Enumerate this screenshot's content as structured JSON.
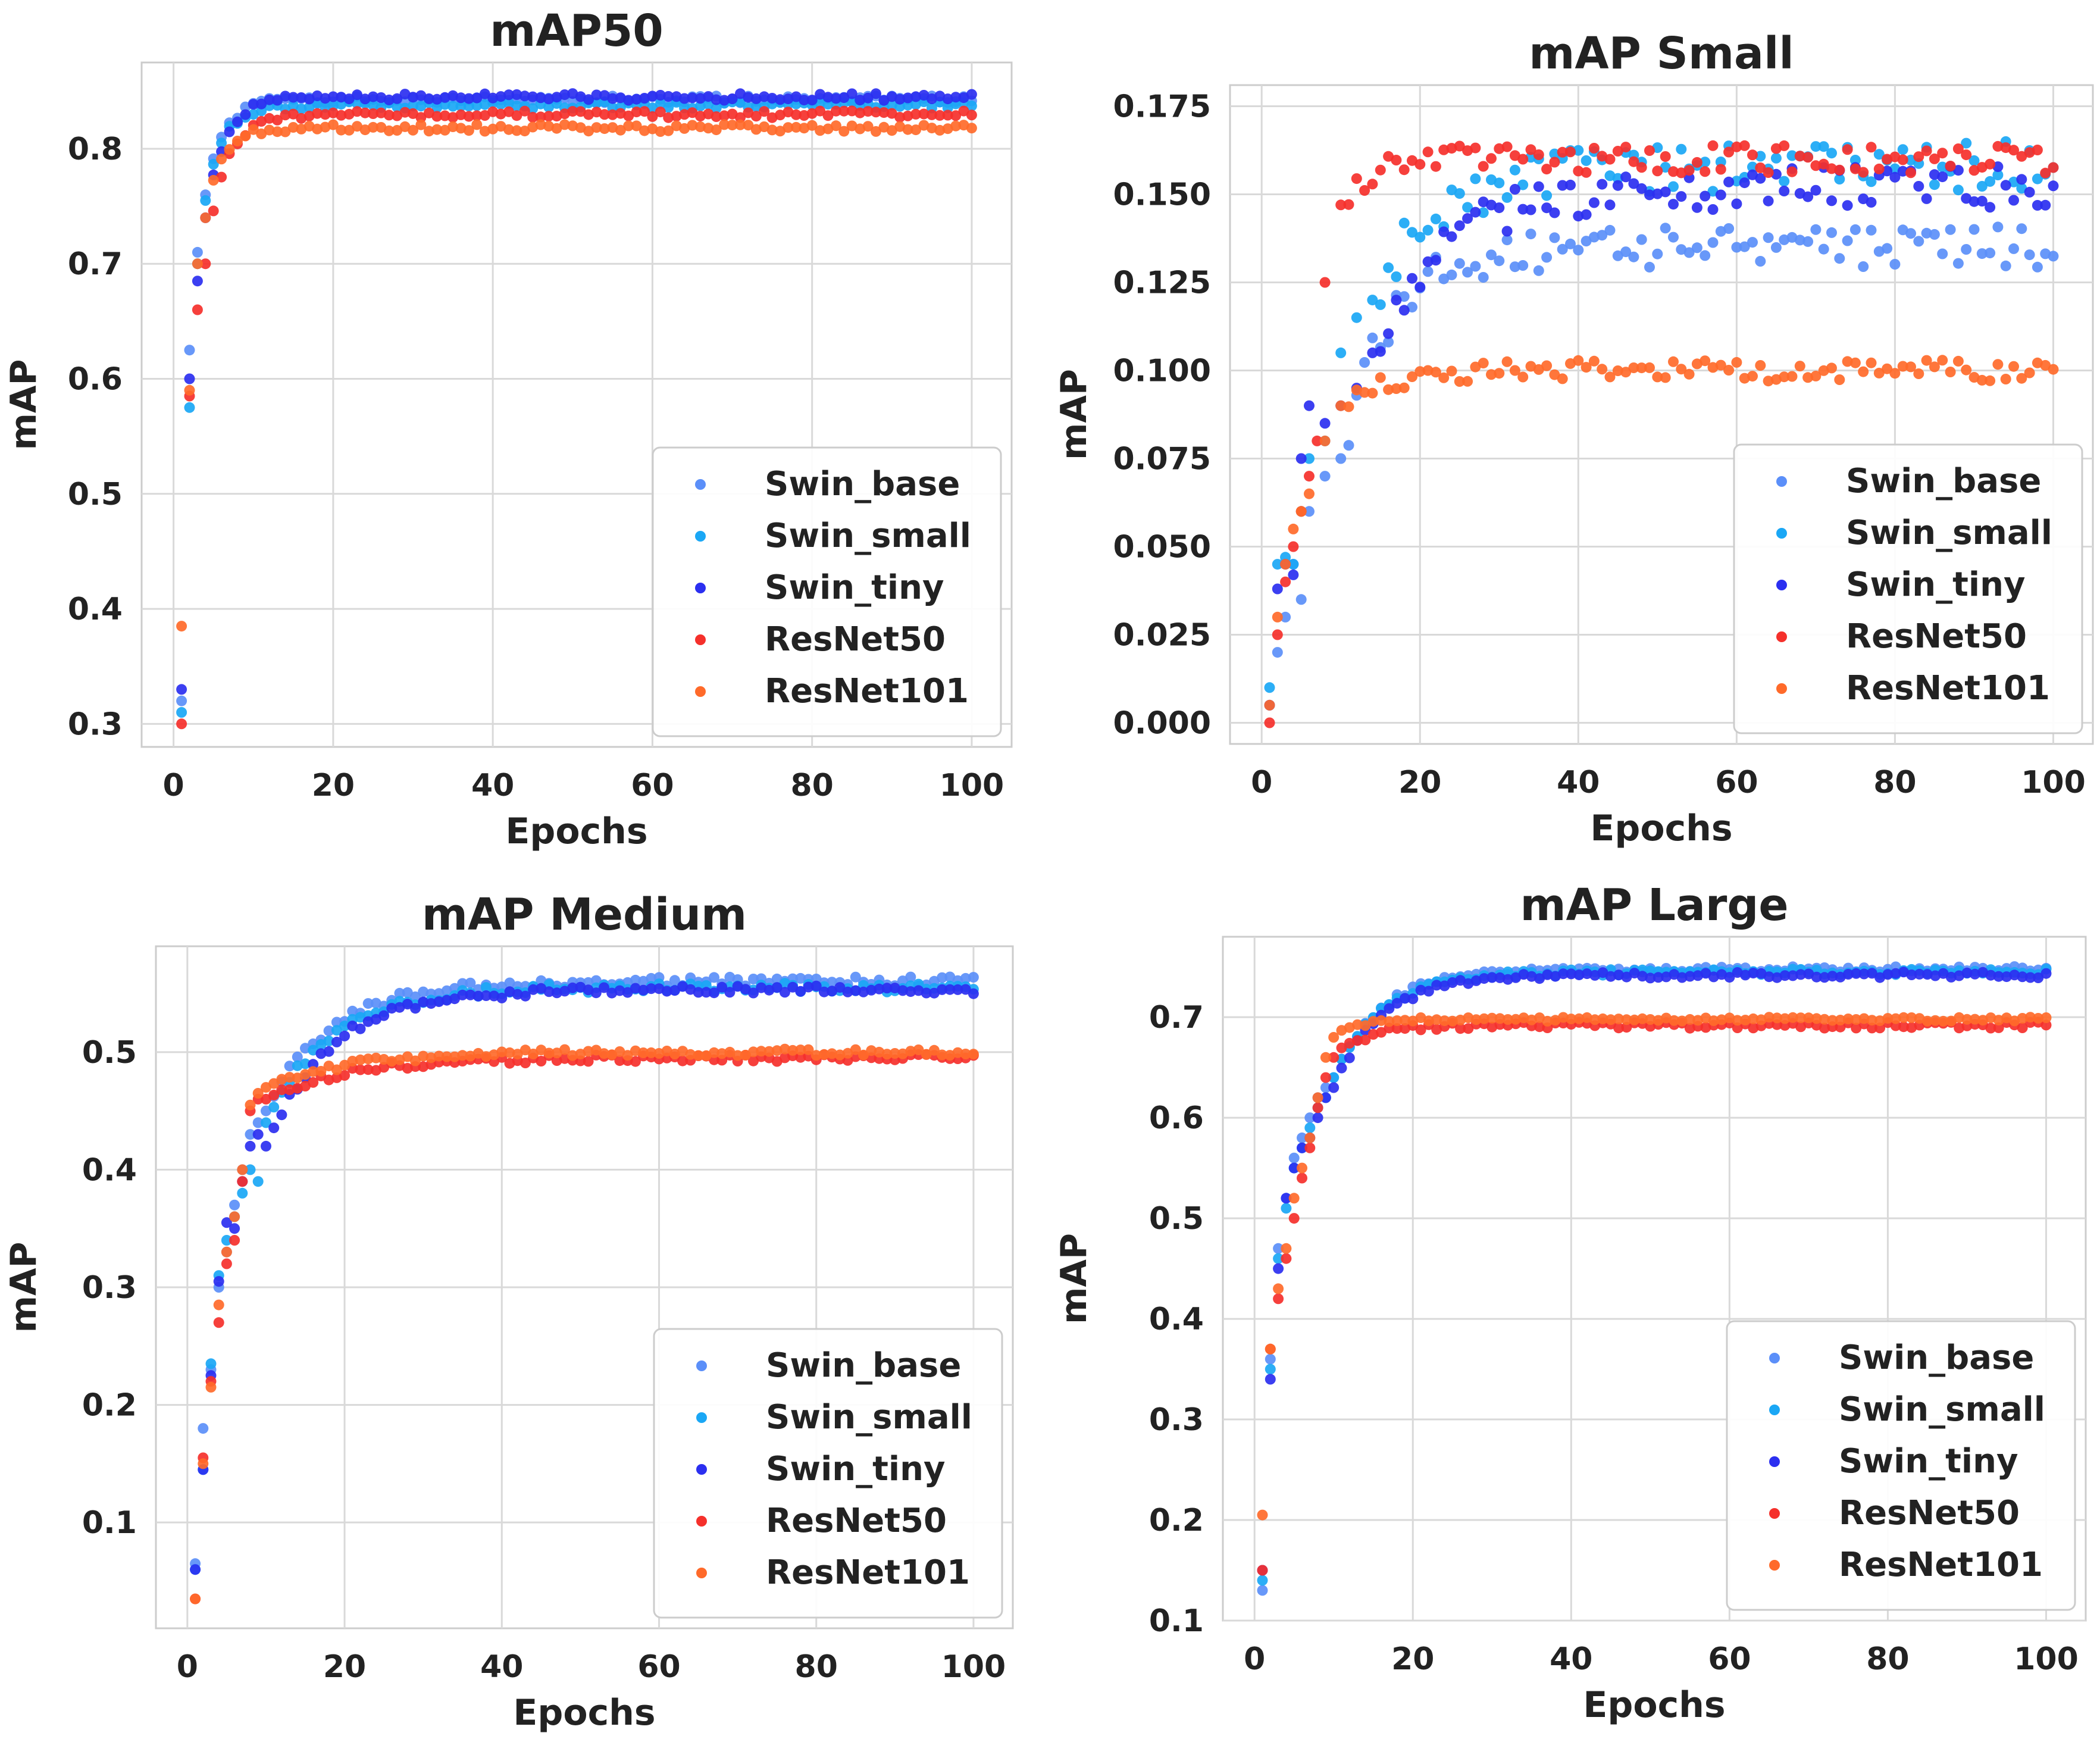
{
  "colors": {
    "Swin_base": "#5b8ff9",
    "Swin_small": "#1aa7f5",
    "Swin_tiny": "#2b2ff0",
    "ResNet50": "#f5302b",
    "ResNet101": "#ff6a2a"
  },
  "chart_data": [
    {
      "type": "scatter",
      "title": "mAP50",
      "xlabel": "Epochs",
      "ylabel": "mAP",
      "xlim": [
        -4,
        105
      ],
      "ylim": [
        0.28,
        0.875
      ],
      "xticks": [
        0,
        20,
        40,
        60,
        80,
        100
      ],
      "yticks": [
        0.3,
        0.4,
        0.5,
        0.6,
        0.7,
        0.8
      ],
      "grid": true,
      "legend": "lower-right",
      "series": [
        {
          "name": "Swin_base",
          "start": [
            [
              1,
              0.32
            ],
            [
              2,
              0.625
            ],
            [
              3,
              0.71
            ],
            [
              4,
              0.76
            ]
          ],
          "plateau": 0.843,
          "tau": 2.2,
          "noise": 0.003
        },
        {
          "name": "Swin_small",
          "start": [
            [
              1,
              0.31
            ],
            [
              2,
              0.575
            ],
            [
              3,
              0.7
            ],
            [
              4,
              0.755
            ]
          ],
          "plateau": 0.838,
          "tau": 2.2,
          "noise": 0.003
        },
        {
          "name": "Swin_tiny",
          "start": [
            [
              1,
              0.33
            ],
            [
              2,
              0.6
            ],
            [
              3,
              0.685
            ],
            [
              4,
              0.74
            ]
          ],
          "plateau": 0.845,
          "tau": 2.4,
          "noise": 0.003
        },
        {
          "name": "ResNet50",
          "start": [
            [
              1,
              0.3
            ],
            [
              2,
              0.585
            ],
            [
              3,
              0.66
            ],
            [
              4,
              0.7
            ]
          ],
          "plateau": 0.83,
          "tau": 2.4,
          "noise": 0.003
        },
        {
          "name": "ResNet101",
          "start": [
            [
              1,
              0.385
            ],
            [
              2,
              0.59
            ],
            [
              3,
              0.7
            ],
            [
              4,
              0.74
            ]
          ],
          "plateau": 0.818,
          "tau": 2.0,
          "noise": 0.003
        }
      ]
    },
    {
      "type": "scatter",
      "title": "mAP Small",
      "xlabel": "Epochs",
      "ylabel": "mAP",
      "xlim": [
        -4,
        105
      ],
      "ylim": [
        -0.006,
        0.181
      ],
      "xticks": [
        0,
        20,
        40,
        60,
        80,
        100
      ],
      "yticks": [
        0.0,
        0.025,
        0.05,
        0.075,
        0.1,
        0.125,
        0.15,
        0.175
      ],
      "grid": true,
      "legend": "lower-right",
      "series": [
        {
          "name": "Swin_base",
          "start": [
            [
              1,
              0.005
            ],
            [
              2,
              0.02
            ],
            [
              3,
              0.03
            ],
            [
              4,
              0.045
            ],
            [
              5,
              0.035
            ],
            [
              6,
              0.06
            ],
            [
              8,
              0.07
            ],
            [
              10,
              0.075
            ]
          ],
          "plateau": 0.135,
          "tau": 6,
          "noise": 0.006
        },
        {
          "name": "Swin_small",
          "start": [
            [
              1,
              0.01
            ],
            [
              2,
              0.045
            ],
            [
              3,
              0.047
            ],
            [
              4,
              0.045
            ],
            [
              5,
              0.06
            ],
            [
              6,
              0.075
            ],
            [
              8,
              0.08
            ],
            [
              10,
              0.105
            ],
            [
              12,
              0.115
            ],
            [
              14,
              0.12
            ]
          ],
          "plateau": 0.158,
          "tau": 8,
          "noise": 0.007
        },
        {
          "name": "Swin_tiny",
          "start": [
            [
              1,
              0.005
            ],
            [
              2,
              0.038
            ],
            [
              3,
              0.045
            ],
            [
              4,
              0.042
            ],
            [
              5,
              0.075
            ],
            [
              6,
              0.09
            ],
            [
              8,
              0.085
            ],
            [
              10,
              0.09
            ],
            [
              12,
              0.095
            ],
            [
              14,
              0.105
            ]
          ],
          "plateau": 0.152,
          "tau": 9,
          "noise": 0.006
        },
        {
          "name": "ResNet50",
          "start": [
            [
              1,
              0.0
            ],
            [
              2,
              0.025
            ],
            [
              3,
              0.04
            ],
            [
              4,
              0.05
            ],
            [
              5,
              0.06
            ],
            [
              6,
              0.07
            ],
            [
              7,
              0.08
            ],
            [
              8,
              0.125
            ],
            [
              10,
              0.147
            ]
          ],
          "plateau": 0.16,
          "tau": 4,
          "noise": 0.004
        },
        {
          "name": "ResNet101",
          "start": [
            [
              1,
              0.005
            ],
            [
              2,
              0.03
            ],
            [
              3,
              0.045
            ],
            [
              4,
              0.055
            ],
            [
              5,
              0.06
            ],
            [
              6,
              0.065
            ],
            [
              8,
              0.08
            ],
            [
              10,
              0.09
            ]
          ],
          "plateau": 0.1,
          "tau": 6,
          "noise": 0.003
        }
      ]
    },
    {
      "type": "scatter",
      "title": "mAP Medium",
      "xlabel": "Epochs",
      "ylabel": "mAP",
      "xlim": [
        -4,
        105
      ],
      "ylim": [
        0.01,
        0.59
      ],
      "xticks": [
        0,
        20,
        40,
        60,
        80,
        100
      ],
      "yticks": [
        0.1,
        0.2,
        0.3,
        0.4,
        0.5
      ],
      "grid": true,
      "legend": "lower-right",
      "series": [
        {
          "name": "Swin_base",
          "start": [
            [
              1,
              0.065
            ],
            [
              2,
              0.18
            ],
            [
              3,
              0.23
            ],
            [
              4,
              0.3
            ],
            [
              5,
              0.33
            ],
            [
              6,
              0.37
            ],
            [
              7,
              0.4
            ],
            [
              8,
              0.43
            ],
            [
              9,
              0.44
            ],
            [
              10,
              0.45
            ]
          ],
          "plateau": 0.56,
          "tau": 8,
          "noise": 0.004
        },
        {
          "name": "Swin_small",
          "start": [
            [
              1,
              0.06
            ],
            [
              2,
              0.145
            ],
            [
              3,
              0.235
            ],
            [
              4,
              0.31
            ],
            [
              5,
              0.34
            ],
            [
              6,
              0.36
            ],
            [
              7,
              0.38
            ],
            [
              8,
              0.4
            ],
            [
              9,
              0.39
            ],
            [
              10,
              0.44
            ]
          ],
          "plateau": 0.555,
          "tau": 8,
          "noise": 0.004
        },
        {
          "name": "Swin_tiny",
          "start": [
            [
              1,
              0.06
            ],
            [
              2,
              0.145
            ],
            [
              3,
              0.225
            ],
            [
              4,
              0.305
            ],
            [
              5,
              0.355
            ],
            [
              6,
              0.35
            ],
            [
              7,
              0.39
            ],
            [
              8,
              0.42
            ],
            [
              9,
              0.43
            ],
            [
              10,
              0.42
            ]
          ],
          "plateau": 0.553,
          "tau": 8,
          "noise": 0.004
        },
        {
          "name": "ResNet50",
          "start": [
            [
              1,
              0.035
            ],
            [
              2,
              0.155
            ],
            [
              3,
              0.22
            ],
            [
              4,
              0.27
            ],
            [
              5,
              0.32
            ],
            [
              6,
              0.34
            ],
            [
              7,
              0.39
            ],
            [
              8,
              0.45
            ],
            [
              9,
              0.46
            ],
            [
              10,
              0.46
            ]
          ],
          "plateau": 0.495,
          "tau": 10,
          "noise": 0.003
        },
        {
          "name": "ResNet101",
          "start": [
            [
              1,
              0.035
            ],
            [
              2,
              0.15
            ],
            [
              3,
              0.215
            ],
            [
              4,
              0.285
            ],
            [
              5,
              0.33
            ],
            [
              6,
              0.36
            ],
            [
              7,
              0.4
            ],
            [
              8,
              0.455
            ],
            [
              9,
              0.465
            ],
            [
              10,
              0.47
            ]
          ],
          "plateau": 0.5,
          "tau": 10,
          "noise": 0.003
        }
      ]
    },
    {
      "type": "scatter",
      "title": "mAP Large",
      "xlabel": "Epochs",
      "ylabel": "mAP",
      "xlim": [
        -4,
        105
      ],
      "ylim": [
        0.1,
        0.78
      ],
      "xticks": [
        0,
        20,
        40,
        60,
        80,
        100
      ],
      "yticks": [
        0.1,
        0.2,
        0.3,
        0.4,
        0.5,
        0.6,
        0.7
      ],
      "grid": true,
      "legend": "lower-right",
      "series": [
        {
          "name": "Swin_base",
          "start": [
            [
              1,
              0.13
            ],
            [
              2,
              0.36
            ],
            [
              3,
              0.47
            ],
            [
              4,
              0.52
            ],
            [
              5,
              0.56
            ],
            [
              6,
              0.58
            ],
            [
              7,
              0.6
            ],
            [
              8,
              0.62
            ],
            [
              9,
              0.63
            ],
            [
              10,
              0.64
            ]
          ],
          "plateau": 0.748,
          "tau": 6,
          "noise": 0.003
        },
        {
          "name": "Swin_small",
          "start": [
            [
              1,
              0.14
            ],
            [
              2,
              0.35
            ],
            [
              3,
              0.46
            ],
            [
              4,
              0.51
            ],
            [
              5,
              0.55
            ],
            [
              6,
              0.57
            ],
            [
              7,
              0.59
            ],
            [
              8,
              0.61
            ],
            [
              9,
              0.62
            ],
            [
              10,
              0.64
            ]
          ],
          "plateau": 0.745,
          "tau": 6,
          "noise": 0.003
        },
        {
          "name": "Swin_tiny",
          "start": [
            [
              1,
              0.15
            ],
            [
              2,
              0.34
            ],
            [
              3,
              0.45
            ],
            [
              4,
              0.52
            ],
            [
              5,
              0.55
            ],
            [
              6,
              0.57
            ],
            [
              7,
              0.58
            ],
            [
              8,
              0.6
            ],
            [
              9,
              0.62
            ],
            [
              10,
              0.63
            ]
          ],
          "plateau": 0.742,
          "tau": 6,
          "noise": 0.003
        },
        {
          "name": "ResNet50",
          "start": [
            [
              1,
              0.15
            ],
            [
              2,
              0.37
            ],
            [
              3,
              0.42
            ],
            [
              4,
              0.46
            ],
            [
              5,
              0.5
            ],
            [
              6,
              0.54
            ],
            [
              7,
              0.57
            ],
            [
              8,
              0.61
            ],
            [
              9,
              0.64
            ],
            [
              10,
              0.66
            ]
          ],
          "plateau": 0.692,
          "tau": 4,
          "noise": 0.003
        },
        {
          "name": "ResNet101",
          "start": [
            [
              1,
              0.205
            ],
            [
              2,
              0.37
            ],
            [
              3,
              0.43
            ],
            [
              4,
              0.47
            ],
            [
              5,
              0.52
            ],
            [
              6,
              0.55
            ],
            [
              7,
              0.58
            ],
            [
              8,
              0.62
            ],
            [
              9,
              0.66
            ],
            [
              10,
              0.68
            ]
          ],
          "plateau": 0.698,
          "tau": 3,
          "noise": 0.002
        }
      ]
    }
  ]
}
